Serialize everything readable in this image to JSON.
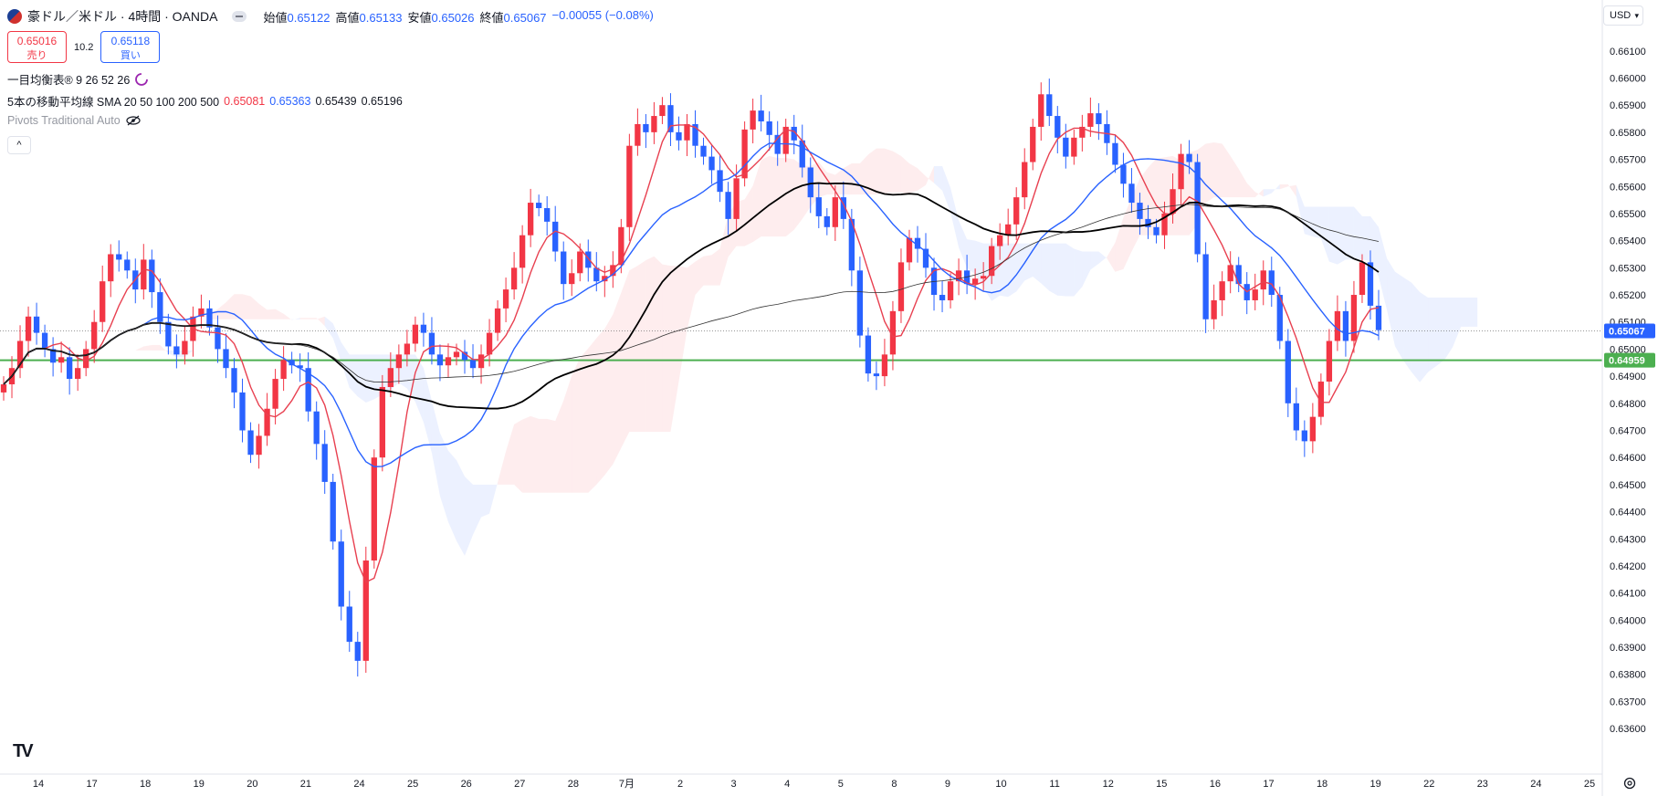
{
  "header": {
    "symbol": "豪ドル／米ドル · 4時間 · OANDA",
    "open_label": "始値",
    "open": "0.65122",
    "high_label": "高値",
    "high": "0.65133",
    "low_label": "安値",
    "low": "0.65026",
    "close_label": "終値",
    "close": "0.65067",
    "change": "−0.00055 (−0.08%)"
  },
  "trade": {
    "sell_price": "0.65016",
    "sell_label": "売り",
    "spread": "10.2",
    "buy_price": "0.65118",
    "buy_label": "買い"
  },
  "indicators": {
    "ichimoku": "一目均衡表® 9 26 52 26",
    "ma_title": "5本の移動平均線 SMA 20 50 100 200 500",
    "ma_v1": "0.65081",
    "ma_v2": "0.65363",
    "ma_v3": "0.65439",
    "ma_v4": "0.65196",
    "pivots": "Pivots Traditional Auto"
  },
  "currency": "USD",
  "logo": "TV",
  "colors": {
    "up": "#f23645",
    "down": "#2962ff",
    "sma20": "#e84050",
    "sma50": "#2962ff",
    "sma100": "#000000",
    "sma200": "#333333",
    "level": "#4caf50"
  },
  "chart_data": {
    "type": "candlestick",
    "y_ticks": [
      "0.66100",
      "0.66000",
      "0.65900",
      "0.65800",
      "0.65700",
      "0.65600",
      "0.65500",
      "0.65400",
      "0.65300",
      "0.65200",
      "0.65100",
      "0.65000",
      "0.64900",
      "0.64800",
      "0.64700",
      "0.64600",
      "0.64500",
      "0.64400",
      "0.64300",
      "0.64200",
      "0.64100",
      "0.64000",
      "0.63900",
      "0.63800",
      "0.63700",
      "0.63600"
    ],
    "ylim": [
      0.6356,
      0.6617
    ],
    "x_ticks": [
      "14",
      "17",
      "18",
      "19",
      "20",
      "21",
      "24",
      "25",
      "26",
      "27",
      "28",
      "7月",
      "2",
      "3",
      "4",
      "5",
      "8",
      "9",
      "10",
      "11",
      "12",
      "15",
      "16",
      "17",
      "18",
      "19",
      "22",
      "23",
      "24",
      "25"
    ],
    "current_price": "0.65067",
    "level_price": "0.64959",
    "level_value": 0.64959,
    "closes": [
      0.6487,
      0.6493,
      0.6503,
      0.6512,
      0.6506,
      0.65,
      0.6495,
      0.6497,
      0.6489,
      0.6493,
      0.65,
      0.651,
      0.6525,
      0.6535,
      0.6533,
      0.6529,
      0.6522,
      0.6533,
      0.6521,
      0.651,
      0.6501,
      0.6498,
      0.6503,
      0.6512,
      0.6515,
      0.6508,
      0.65,
      0.6493,
      0.6484,
      0.647,
      0.6461,
      0.6468,
      0.6478,
      0.6489,
      0.6496,
      0.6494,
      0.6493,
      0.6477,
      0.6465,
      0.6451,
      0.6429,
      0.6405,
      0.6392,
      0.6385,
      0.6422,
      0.646,
      0.6486,
      0.6493,
      0.6498,
      0.6502,
      0.6509,
      0.6506,
      0.6498,
      0.6494,
      0.6497,
      0.6499,
      0.6496,
      0.6493,
      0.6498,
      0.6506,
      0.6515,
      0.6522,
      0.653,
      0.6542,
      0.6554,
      0.6552,
      0.6547,
      0.6536,
      0.6524,
      0.6528,
      0.6536,
      0.653,
      0.6525,
      0.6527,
      0.6531,
      0.6545,
      0.6575,
      0.6583,
      0.658,
      0.6586,
      0.659,
      0.658,
      0.6577,
      0.6583,
      0.6575,
      0.6571,
      0.6566,
      0.6558,
      0.6548,
      0.6563,
      0.6581,
      0.6588,
      0.6584,
      0.6579,
      0.6572,
      0.6582,
      0.6577,
      0.6567,
      0.6556,
      0.6549,
      0.6545,
      0.6556,
      0.6548,
      0.6529,
      0.6505,
      0.6491,
      0.649,
      0.6498,
      0.6514,
      0.6532,
      0.6541,
      0.6537,
      0.653,
      0.652,
      0.6518,
      0.6525,
      0.6529,
      0.6524,
      0.6526,
      0.6527,
      0.6538,
      0.6542,
      0.6546,
      0.6556,
      0.6569,
      0.6582,
      0.6594,
      0.6586,
      0.6578,
      0.6571,
      0.6578,
      0.6582,
      0.6587,
      0.6583,
      0.6576,
      0.6568,
      0.6561,
      0.6554,
      0.6548,
      0.6545,
      0.6542,
      0.655,
      0.6559,
      0.6572,
      0.6569,
      0.6535,
      0.6511,
      0.6518,
      0.6525,
      0.6531,
      0.6524,
      0.6518,
      0.6522,
      0.6529,
      0.652,
      0.6503,
      0.648,
      0.647,
      0.6466,
      0.6475,
      0.6488,
      0.6503,
      0.6514,
      0.6503,
      0.652,
      0.6532,
      0.6516,
      0.6507
    ],
    "sma20_label": "SMA 20",
    "sma50_label": "SMA 50",
    "sma100_label": "SMA 100",
    "sma200_label": "SMA 200"
  }
}
